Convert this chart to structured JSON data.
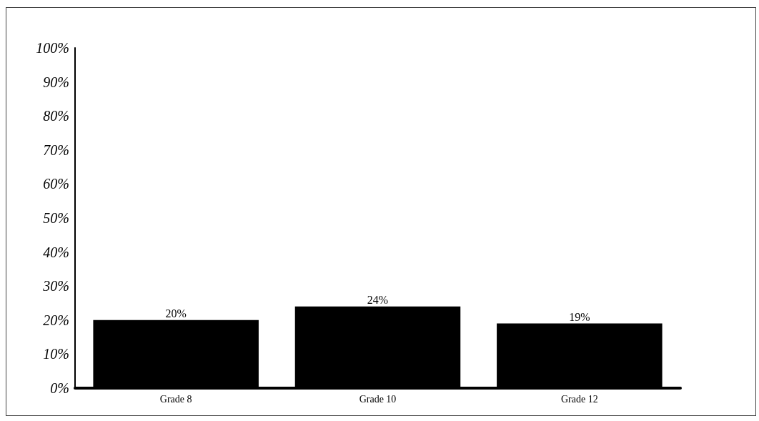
{
  "chart_data": {
    "type": "bar",
    "categories": [
      "Grade 8",
      "Grade 10",
      "Grade 12"
    ],
    "values": [
      20,
      24,
      19
    ],
    "value_labels": [
      "20%",
      "24%",
      "19%"
    ],
    "color": "#000000",
    "ylim": [
      0,
      100
    ],
    "yticks": [
      {
        "value": 0,
        "label": "0%"
      },
      {
        "value": 10,
        "label": "10%"
      },
      {
        "value": 20,
        "label": "20%"
      },
      {
        "value": 30,
        "label": "30%"
      },
      {
        "value": 40,
        "label": "40%"
      },
      {
        "value": 50,
        "label": "50%"
      },
      {
        "value": 60,
        "label": "60%"
      },
      {
        "value": 70,
        "label": "70%"
      },
      {
        "value": 80,
        "label": "80%"
      },
      {
        "value": 90,
        "label": "90%"
      },
      {
        "value": 100,
        "label": "100%"
      }
    ],
    "grid": false
  }
}
